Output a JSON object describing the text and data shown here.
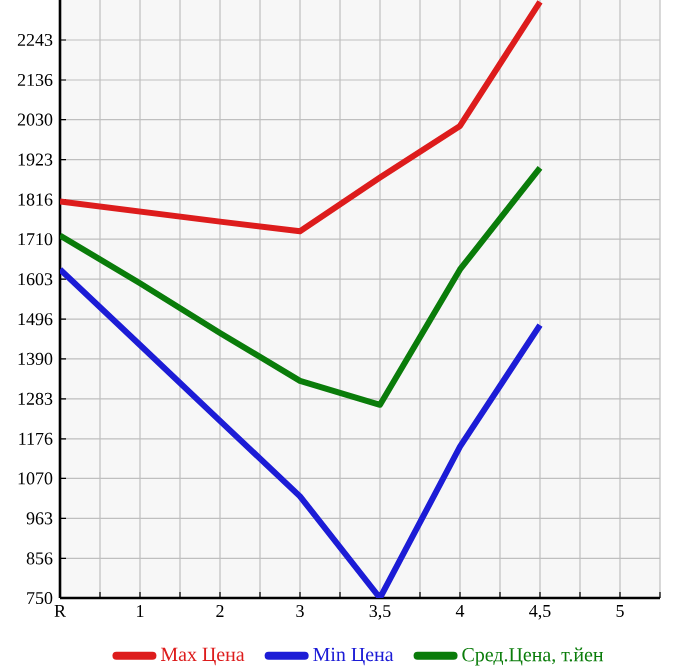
{
  "chart_data": {
    "type": "line",
    "categories": [
      "R",
      "1",
      "2",
      "3",
      "3,5",
      "4",
      "4,5",
      "5"
    ],
    "series": [
      {
        "name": "Max Цена",
        "color": "#dd1c1c",
        "values": [
          1811,
          1784,
          1757,
          1731,
          1875,
          2013,
          2345,
          null
        ]
      },
      {
        "name": "Min Цена",
        "color": "#1c1cd6",
        "values": [
          1629,
          1427,
          1224,
          1022,
          750,
          1155,
          1480,
          null
        ]
      },
      {
        "name": "Сред.Цена, т.йен",
        "color": "#0a7c0a",
        "values": [
          1720,
          1592,
          1459,
          1331,
          1267,
          1629,
          1901,
          null
        ]
      }
    ],
    "ylim": [
      750,
      2350
    ],
    "yticks": [
      750,
      856,
      963,
      1070,
      1176,
      1283,
      1390,
      1496,
      1603,
      1710,
      1816,
      1923,
      2030,
      2136,
      2243
    ],
    "grid": true,
    "legend": "bottom",
    "marker": "none",
    "line_style": "solid"
  }
}
